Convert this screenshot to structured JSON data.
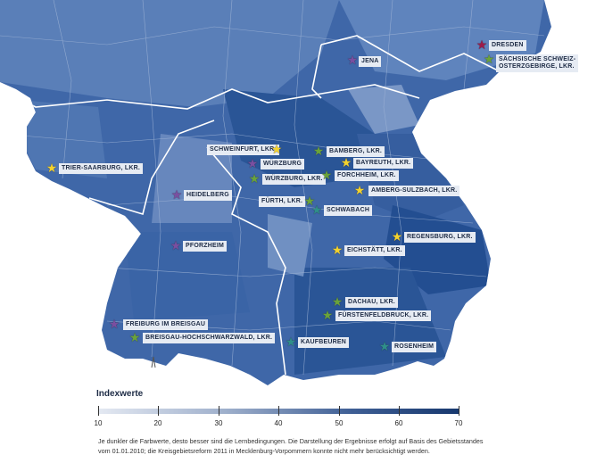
{
  "colors": {
    "map_light": "#6f8fc0",
    "map_mid": "#3f67a8",
    "map_dark": "#1f4a8e",
    "border": "#ffffff",
    "star_purple": "#7a4fa0",
    "star_green": "#6aa33a",
    "star_yellow": "#f2d22e",
    "star_teal": "#2f8f8a",
    "star_crimson": "#9c1c4a"
  },
  "markers": [
    {
      "label": "DRESDEN",
      "star": "crimson"
    },
    {
      "label": "SÄCHSISCHE SCHWEIZ-",
      "label2": "OSTERZGEBIRGE, LKR.",
      "star": "green"
    },
    {
      "label": "JENA",
      "star": "purple"
    },
    {
      "label": "SCHWEINFURT, LKR.",
      "star": "yellow"
    },
    {
      "label": "BAMBERG, LKR.",
      "star": "green"
    },
    {
      "label": "WÜRZBURG",
      "star": "purple"
    },
    {
      "label": "BAYREUTH, LKR.",
      "star": "yellow"
    },
    {
      "label": "WÜRZBURG, LKR.",
      "star": "green"
    },
    {
      "label": "FORCHHEIM, LKR.",
      "star": "green"
    },
    {
      "label": "AMBERG-SULZBACH, LKR.",
      "star": "yellow"
    },
    {
      "label": "TRIER-SAARBURG, LKR.",
      "star": "yellow"
    },
    {
      "label": "HEIDELBERG",
      "star": "purple"
    },
    {
      "label": "FÜRTH, LKR.",
      "star": "green"
    },
    {
      "label": "SCHWABACH",
      "star": "teal"
    },
    {
      "label": "REGENSBURG, LKR.",
      "star": "yellow"
    },
    {
      "label": "EICHSTÄTT, LKR.",
      "star": "yellow"
    },
    {
      "label": "PFORZHEIM",
      "star": "purple"
    },
    {
      "label": "DACHAU, LKR.",
      "star": "green"
    },
    {
      "label": "FÜRSTENFELDBRUCK, LKR.",
      "star": "green"
    },
    {
      "label": "FREIBURG IM BREISGAU",
      "star": "purple"
    },
    {
      "label": "BREISGAU-HOCHSCHWARZWALD, LKR.",
      "star": "green"
    },
    {
      "label": "KAUFBEUREN",
      "star": "teal"
    },
    {
      "label": "ROSENHEIM",
      "star": "teal"
    }
  ],
  "legend": {
    "title": "Indexwerte",
    "ticks": [
      "10",
      "20",
      "30",
      "40",
      "50",
      "60",
      "70"
    ],
    "min": 10,
    "max": 70
  },
  "footnote": {
    "line1": "Je dunkler die Farbwerte, desto besser sind die Lernbedingungen. Die Darstellung der Ergebnisse erfolgt auf Basis des Gebietsstandes",
    "line2": "vom 01.01.2010; die Kreisgebietsreform 2011 in Mecklenburg-Vorpommern konnte nicht mehr berücksichtigt werden."
  }
}
